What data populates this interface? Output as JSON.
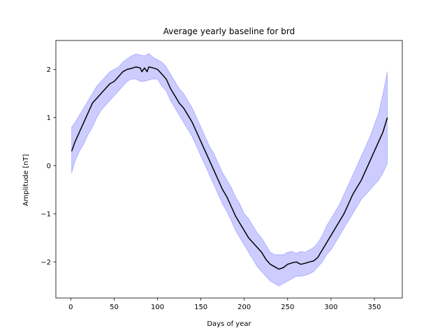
{
  "chart_data": {
    "type": "area",
    "title": "Average yearly baseline for brd",
    "xlabel": "Days of year",
    "ylabel": "Amplitude [nT]",
    "xlim": [
      -17.2,
      382.2
    ],
    "ylim": [
      -2.75,
      2.6
    ],
    "xticks": [
      0,
      50,
      100,
      150,
      200,
      250,
      300,
      350
    ],
    "yticks": [
      -2,
      -1,
      0,
      1,
      2
    ],
    "ytick_labels": [
      "−2",
      "−1",
      "0",
      "1",
      "2"
    ],
    "grid": false,
    "legend": "none",
    "mean_color": "#000000",
    "band_color": "#0000ff",
    "series": [
      {
        "role": "mean",
        "x": [
          1,
          5,
          10,
          15,
          20,
          25,
          30,
          35,
          40,
          45,
          50,
          55,
          60,
          65,
          70,
          75,
          80,
          82,
          85,
          88,
          90,
          95,
          100,
          105,
          110,
          115,
          120,
          125,
          130,
          135,
          140,
          145,
          150,
          155,
          160,
          165,
          170,
          175,
          180,
          185,
          190,
          195,
          200,
          205,
          210,
          215,
          220,
          225,
          230,
          235,
          240,
          245,
          250,
          255,
          260,
          265,
          270,
          275,
          280,
          285,
          290,
          295,
          300,
          305,
          310,
          315,
          320,
          325,
          330,
          335,
          340,
          345,
          350,
          355,
          360,
          365
        ],
        "y": [
          0.3,
          0.5,
          0.7,
          0.9,
          1.1,
          1.3,
          1.4,
          1.5,
          1.6,
          1.7,
          1.75,
          1.85,
          1.95,
          2.0,
          2.02,
          2.05,
          2.03,
          1.95,
          2.03,
          1.95,
          2.05,
          2.03,
          2.0,
          1.9,
          1.8,
          1.6,
          1.45,
          1.3,
          1.2,
          1.05,
          0.9,
          0.7,
          0.5,
          0.3,
          0.1,
          -0.1,
          -0.3,
          -0.5,
          -0.65,
          -0.85,
          -1.05,
          -1.2,
          -1.35,
          -1.5,
          -1.6,
          -1.7,
          -1.8,
          -1.95,
          -2.05,
          -2.1,
          -2.15,
          -2.12,
          -2.05,
          -2.02,
          -2.0,
          -2.05,
          -2.03,
          -2.0,
          -1.98,
          -1.9,
          -1.75,
          -1.6,
          -1.45,
          -1.3,
          -1.15,
          -1.0,
          -0.8,
          -0.6,
          -0.45,
          -0.3,
          -0.1,
          0.1,
          0.3,
          0.5,
          0.7,
          1.0
        ]
      },
      {
        "role": "band-upper",
        "x": [
          1,
          5,
          10,
          15,
          20,
          25,
          30,
          35,
          40,
          45,
          50,
          55,
          60,
          65,
          70,
          75,
          80,
          85,
          90,
          95,
          100,
          105,
          110,
          115,
          120,
          125,
          130,
          135,
          140,
          145,
          150,
          155,
          160,
          165,
          170,
          175,
          180,
          185,
          190,
          195,
          200,
          205,
          210,
          215,
          220,
          225,
          230,
          235,
          240,
          245,
          250,
          255,
          260,
          265,
          270,
          275,
          280,
          285,
          290,
          295,
          300,
          305,
          310,
          315,
          320,
          325,
          330,
          335,
          340,
          345,
          350,
          355,
          360,
          365
        ],
        "y": [
          0.8,
          0.9,
          1.05,
          1.2,
          1.35,
          1.5,
          1.65,
          1.75,
          1.85,
          1.95,
          2.0,
          2.05,
          2.15,
          2.22,
          2.28,
          2.32,
          2.3,
          2.28,
          2.33,
          2.25,
          2.2,
          2.15,
          2.05,
          1.9,
          1.75,
          1.6,
          1.5,
          1.35,
          1.2,
          1.0,
          0.8,
          0.6,
          0.4,
          0.25,
          0.05,
          -0.15,
          -0.3,
          -0.45,
          -0.65,
          -0.8,
          -1.0,
          -1.1,
          -1.25,
          -1.4,
          -1.5,
          -1.65,
          -1.8,
          -1.85,
          -1.85,
          -1.85,
          -1.8,
          -1.78,
          -1.82,
          -1.78,
          -1.8,
          -1.75,
          -1.7,
          -1.6,
          -1.45,
          -1.25,
          -1.1,
          -0.95,
          -0.8,
          -0.6,
          -0.4,
          -0.2,
          0.0,
          0.2,
          0.4,
          0.6,
          0.85,
          1.1,
          1.5,
          1.95
        ]
      },
      {
        "role": "band-lower",
        "x": [
          1,
          5,
          10,
          15,
          20,
          25,
          30,
          35,
          40,
          45,
          50,
          55,
          60,
          65,
          70,
          75,
          80,
          85,
          90,
          95,
          100,
          105,
          110,
          115,
          120,
          125,
          130,
          135,
          140,
          145,
          150,
          155,
          160,
          165,
          170,
          175,
          180,
          185,
          190,
          195,
          200,
          205,
          210,
          215,
          220,
          225,
          230,
          235,
          240,
          245,
          250,
          255,
          260,
          265,
          270,
          275,
          280,
          285,
          290,
          295,
          300,
          305,
          310,
          315,
          320,
          325,
          330,
          335,
          340,
          345,
          350,
          355,
          360,
          365
        ],
        "y": [
          -0.15,
          0.1,
          0.3,
          0.45,
          0.65,
          0.8,
          1.0,
          1.15,
          1.25,
          1.35,
          1.45,
          1.55,
          1.65,
          1.75,
          1.8,
          1.8,
          1.75,
          1.75,
          1.78,
          1.8,
          1.8,
          1.65,
          1.55,
          1.35,
          1.2,
          1.05,
          0.9,
          0.75,
          0.6,
          0.4,
          0.2,
          0.0,
          -0.2,
          -0.4,
          -0.6,
          -0.8,
          -0.95,
          -1.15,
          -1.35,
          -1.5,
          -1.65,
          -1.8,
          -1.95,
          -2.1,
          -2.2,
          -2.3,
          -2.4,
          -2.45,
          -2.5,
          -2.45,
          -2.4,
          -2.35,
          -2.3,
          -2.3,
          -2.28,
          -2.25,
          -2.2,
          -2.1,
          -2.0,
          -1.85,
          -1.75,
          -1.6,
          -1.45,
          -1.3,
          -1.15,
          -1.0,
          -0.85,
          -0.7,
          -0.6,
          -0.5,
          -0.4,
          -0.3,
          -0.15,
          0.05
        ]
      }
    ]
  }
}
